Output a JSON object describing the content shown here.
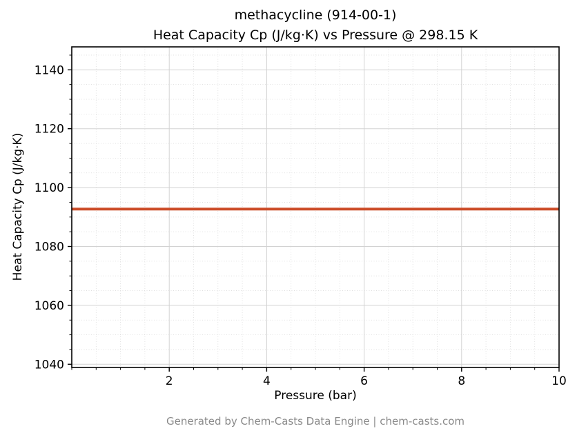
{
  "page": {
    "title_line1": "methacycline (914-00-1)",
    "title_line2": "Heat Capacity Cp (J/kg·K) vs Pressure @ 298.15 K",
    "footer": "Generated by Chem-Casts Data Engine | chem-casts.com"
  },
  "chart_data": {
    "type": "line",
    "title": "methacycline (914-00-1)\nHeat Capacity Cp (J/kg·K) vs Pressure @ 298.15 K",
    "xlabel": "Pressure (bar)",
    "ylabel": "Heat Capacity Cp (J/kg·K)",
    "xlim": [
      0,
      10
    ],
    "ylim": [
      1038.9,
      1147.8
    ],
    "xticks": [
      2,
      4,
      6,
      8,
      10
    ],
    "yticks": [
      1040,
      1060,
      1080,
      1100,
      1120,
      1140
    ],
    "x_minor_step": 0.5,
    "y_minor_step": 5,
    "grid": true,
    "legend": "none",
    "series": [
      {
        "name": "Heat Capacity Cp",
        "x": [
          0,
          10
        ],
        "y": [
          1092.7,
          1092.7
        ],
        "constant_value": 1092.7,
        "color": "#cc4b27",
        "linewidth": 4
      }
    ],
    "colors": {
      "line": "#cc4b27",
      "grid_major": "#d2d2d2",
      "grid_minor": "#dcdcdc",
      "spine": "#000000",
      "tick_label": "#000000",
      "footer_text": "#8a8a8a"
    }
  }
}
